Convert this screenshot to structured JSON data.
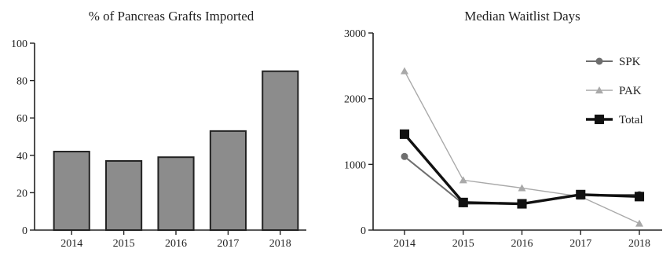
{
  "chart_data": [
    {
      "type": "bar",
      "title": "% of Pancreas Grafts Imported",
      "xlabel": "",
      "ylabel": "",
      "categories": [
        "2014",
        "2015",
        "2016",
        "2017",
        "2018"
      ],
      "values": [
        42,
        37,
        39,
        53,
        85
      ],
      "ylim": [
        0,
        100
      ],
      "yticks": [
        "0",
        "20",
        "40",
        "60",
        "80",
        "100"
      ],
      "bar_color": "#8c8c8c",
      "grid": false
    },
    {
      "type": "line",
      "title": "Median Waitlist Days",
      "xlabel": "",
      "ylabel": "",
      "x": [
        "2014",
        "2015",
        "2016",
        "2017",
        "2018"
      ],
      "ylim": [
        0,
        3000
      ],
      "yticks": [
        "0",
        "1000",
        "2000",
        "3000"
      ],
      "grid": false,
      "legend_position": "top-right",
      "series": [
        {
          "name": "SPK",
          "values": [
            1120,
            400,
            400,
            530,
            540
          ],
          "color": "#6e6e6e",
          "marker": "circle"
        },
        {
          "name": "PAK",
          "values": [
            2420,
            760,
            640,
            510,
            100
          ],
          "color": "#a9a9a9",
          "marker": "triangle"
        },
        {
          "name": "Total",
          "values": [
            1460,
            420,
            400,
            540,
            510
          ],
          "color": "#111111",
          "marker": "square"
        }
      ]
    }
  ]
}
